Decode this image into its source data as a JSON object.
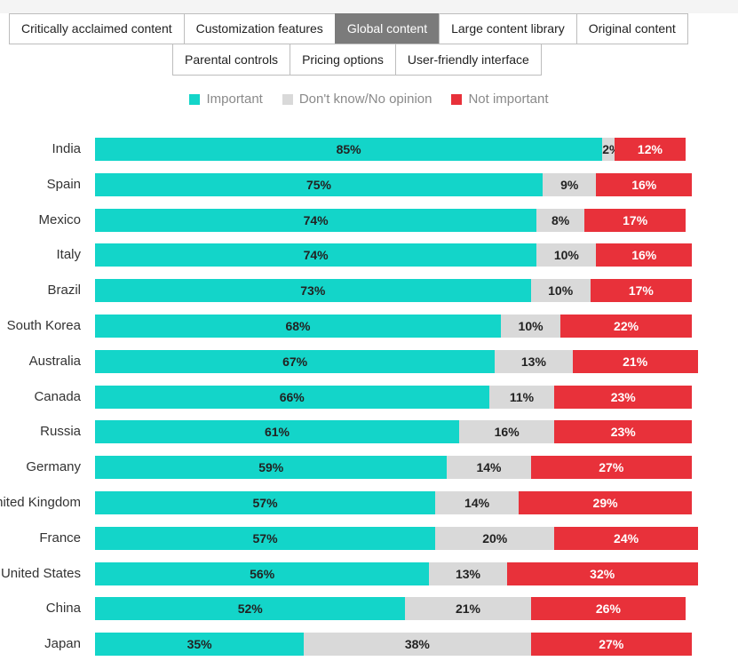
{
  "tabs_row1": [
    "Critically acclaimed content",
    "Customization features",
    "Global content",
    "Large content library",
    "Original content"
  ],
  "tabs_row2": [
    "Parental controls",
    "Pricing options",
    "User-friendly interface"
  ],
  "active_tab": "Global content",
  "chart_data": {
    "type": "bar",
    "orientation": "horizontal",
    "stacked": true,
    "legend_position": "top",
    "categories": [
      "India",
      "Spain",
      "Mexico",
      "Italy",
      "Brazil",
      "South Korea",
      "Australia",
      "Canada",
      "Russia",
      "Germany",
      "United Kingdom",
      "France",
      "United States",
      "China",
      "Japan"
    ],
    "series": [
      {
        "name": "Important",
        "color": "#13d5c9",
        "label_color": "#222222",
        "values": [
          85,
          75,
          74,
          74,
          73,
          68,
          67,
          66,
          61,
          59,
          57,
          57,
          56,
          52,
          35
        ]
      },
      {
        "name": "Don't know/No opinion",
        "color": "#d9d9d9",
        "label_color": "#222222",
        "values": [
          2,
          9,
          8,
          10,
          10,
          10,
          13,
          11,
          16,
          14,
          14,
          20,
          13,
          21,
          38
        ]
      },
      {
        "name": "Not important",
        "color": "#e8313a",
        "label_color": "#ffffff",
        "values": [
          12,
          16,
          17,
          16,
          17,
          22,
          21,
          23,
          23,
          27,
          29,
          24,
          32,
          26,
          27
        ]
      }
    ],
    "value_suffix": "%"
  }
}
